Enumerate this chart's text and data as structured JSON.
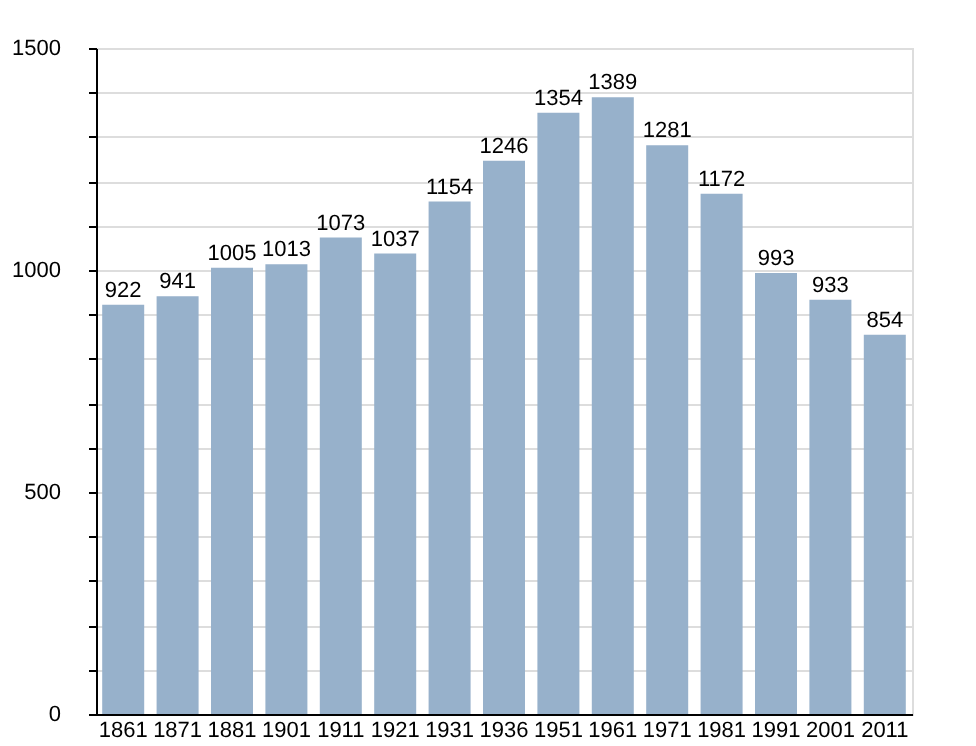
{
  "chart_data": {
    "type": "bar",
    "categories": [
      "1861",
      "1871",
      "1881",
      "1901",
      "1911",
      "1921",
      "1931",
      "1936",
      "1951",
      "1961",
      "1971",
      "1981",
      "1991",
      "2001",
      "2011"
    ],
    "values": [
      922,
      941,
      1005,
      1013,
      1073,
      1037,
      1154,
      1246,
      1354,
      1389,
      1281,
      1172,
      993,
      933,
      854
    ],
    "color": "#97b1cb",
    "data_labels": true,
    "grid": true,
    "ylim": [
      0,
      1500
    ],
    "yticks": [
      0,
      {
        "value": 100,
        "label": null
      },
      {
        "value": 200,
        "label": null
      },
      {
        "value": 300,
        "label": null
      },
      {
        "value": 400,
        "label": null
      },
      500,
      {
        "value": 600,
        "label": null
      },
      {
        "value": 700,
        "label": null
      },
      {
        "value": 800,
        "label": null
      },
      {
        "value": 900,
        "label": null
      },
      1000,
      {
        "value": 1100,
        "label": null
      },
      {
        "value": 1200,
        "label": null
      },
      {
        "value": 1300,
        "label": null
      },
      {
        "value": 1400,
        "label": null
      },
      1500
    ]
  }
}
